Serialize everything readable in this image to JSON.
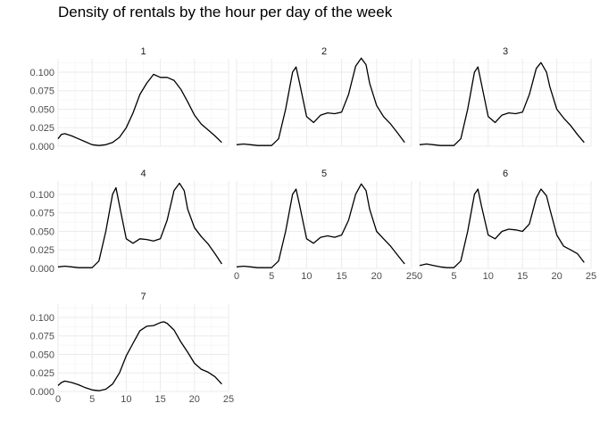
{
  "chart_data": {
    "type": "line",
    "title": "Density of rentals by the hour per day of the week",
    "xlabel": "",
    "ylabel": "",
    "xlim": [
      0,
      25
    ],
    "x_ticks": [
      0,
      5,
      10,
      15,
      20,
      25
    ],
    "x_tick_labels": [
      "0",
      "5",
      "10",
      "15",
      "20",
      "25"
    ],
    "y_ticks": [
      0,
      0.025,
      0.05,
      0.075,
      0.1
    ],
    "y_tick_labels": [
      "0.000",
      "0.025",
      "0.050",
      "0.075",
      "0.100"
    ],
    "ylim": [
      0,
      0.118
    ],
    "grid": true,
    "facets": [
      {
        "label": "1",
        "points": [
          [
            0,
            0.01
          ],
          [
            0.5,
            0.016
          ],
          [
            1,
            0.017
          ],
          [
            2,
            0.014
          ],
          [
            3,
            0.01
          ],
          [
            4,
            0.006
          ],
          [
            5,
            0.002
          ],
          [
            6,
            0.001
          ],
          [
            7,
            0.002
          ],
          [
            8,
            0.005
          ],
          [
            9,
            0.012
          ],
          [
            10,
            0.025
          ],
          [
            11,
            0.045
          ],
          [
            12,
            0.07
          ],
          [
            13,
            0.085
          ],
          [
            14,
            0.097
          ],
          [
            15,
            0.093
          ],
          [
            16,
            0.093
          ],
          [
            17,
            0.089
          ],
          [
            18,
            0.077
          ],
          [
            19,
            0.06
          ],
          [
            20,
            0.042
          ],
          [
            21,
            0.03
          ],
          [
            22,
            0.022
          ],
          [
            23,
            0.014
          ],
          [
            24,
            0.005
          ]
        ]
      },
      {
        "label": "2",
        "points": [
          [
            0,
            0.002
          ],
          [
            1,
            0.003
          ],
          [
            2,
            0.002
          ],
          [
            3,
            0.001
          ],
          [
            4,
            0.001
          ],
          [
            5,
            0.001
          ],
          [
            6,
            0.01
          ],
          [
            7,
            0.05
          ],
          [
            8,
            0.1
          ],
          [
            8.5,
            0.107
          ],
          [
            9,
            0.085
          ],
          [
            10,
            0.04
          ],
          [
            11,
            0.032
          ],
          [
            12,
            0.042
          ],
          [
            13,
            0.045
          ],
          [
            14,
            0.044
          ],
          [
            15,
            0.046
          ],
          [
            16,
            0.07
          ],
          [
            17,
            0.108
          ],
          [
            17.8,
            0.119
          ],
          [
            18.5,
            0.11
          ],
          [
            19,
            0.085
          ],
          [
            20,
            0.055
          ],
          [
            21,
            0.04
          ],
          [
            22,
            0.03
          ],
          [
            23,
            0.018
          ],
          [
            24,
            0.005
          ]
        ]
      },
      {
        "label": "3",
        "points": [
          [
            0,
            0.002
          ],
          [
            1,
            0.003
          ],
          [
            2,
            0.002
          ],
          [
            3,
            0.001
          ],
          [
            4,
            0.001
          ],
          [
            5,
            0.001
          ],
          [
            6,
            0.01
          ],
          [
            7,
            0.05
          ],
          [
            8,
            0.1
          ],
          [
            8.5,
            0.107
          ],
          [
            9,
            0.085
          ],
          [
            10,
            0.04
          ],
          [
            11,
            0.032
          ],
          [
            12,
            0.042
          ],
          [
            13,
            0.045
          ],
          [
            14,
            0.044
          ],
          [
            15,
            0.046
          ],
          [
            16,
            0.07
          ],
          [
            17,
            0.105
          ],
          [
            17.7,
            0.113
          ],
          [
            18.5,
            0.1
          ],
          [
            19,
            0.08
          ],
          [
            20,
            0.05
          ],
          [
            21,
            0.038
          ],
          [
            22,
            0.028
          ],
          [
            23,
            0.016
          ],
          [
            24,
            0.005
          ]
        ]
      },
      {
        "label": "4",
        "points": [
          [
            0,
            0.002
          ],
          [
            1,
            0.003
          ],
          [
            2,
            0.002
          ],
          [
            3,
            0.001
          ],
          [
            4,
            0.001
          ],
          [
            5,
            0.001
          ],
          [
            6,
            0.01
          ],
          [
            7,
            0.05
          ],
          [
            8,
            0.1
          ],
          [
            8.5,
            0.109
          ],
          [
            9,
            0.085
          ],
          [
            10,
            0.04
          ],
          [
            11,
            0.034
          ],
          [
            12,
            0.04
          ],
          [
            13,
            0.039
          ],
          [
            14,
            0.037
          ],
          [
            15,
            0.04
          ],
          [
            16,
            0.065
          ],
          [
            17,
            0.105
          ],
          [
            17.8,
            0.115
          ],
          [
            18.5,
            0.105
          ],
          [
            19,
            0.08
          ],
          [
            20,
            0.055
          ],
          [
            21,
            0.043
          ],
          [
            22,
            0.033
          ],
          [
            23,
            0.02
          ],
          [
            24,
            0.006
          ]
        ]
      },
      {
        "label": "5",
        "points": [
          [
            0,
            0.002
          ],
          [
            1,
            0.003
          ],
          [
            2,
            0.002
          ],
          [
            3,
            0.001
          ],
          [
            4,
            0.001
          ],
          [
            5,
            0.001
          ],
          [
            6,
            0.01
          ],
          [
            7,
            0.05
          ],
          [
            8,
            0.1
          ],
          [
            8.5,
            0.107
          ],
          [
            9,
            0.085
          ],
          [
            10,
            0.04
          ],
          [
            11,
            0.034
          ],
          [
            12,
            0.042
          ],
          [
            13,
            0.044
          ],
          [
            14,
            0.042
          ],
          [
            15,
            0.045
          ],
          [
            16,
            0.065
          ],
          [
            17,
            0.1
          ],
          [
            17.8,
            0.114
          ],
          [
            18.5,
            0.105
          ],
          [
            19,
            0.08
          ],
          [
            20,
            0.05
          ],
          [
            21,
            0.04
          ],
          [
            22,
            0.03
          ],
          [
            23,
            0.018
          ],
          [
            24,
            0.006
          ]
        ]
      },
      {
        "label": "6",
        "points": [
          [
            0,
            0.004
          ],
          [
            1,
            0.006
          ],
          [
            2,
            0.004
          ],
          [
            3,
            0.002
          ],
          [
            4,
            0.001
          ],
          [
            5,
            0.001
          ],
          [
            6,
            0.01
          ],
          [
            7,
            0.05
          ],
          [
            8,
            0.1
          ],
          [
            8.5,
            0.107
          ],
          [
            9,
            0.085
          ],
          [
            10,
            0.045
          ],
          [
            11,
            0.04
          ],
          [
            12,
            0.05
          ],
          [
            13,
            0.053
          ],
          [
            14,
            0.052
          ],
          [
            15,
            0.05
          ],
          [
            16,
            0.06
          ],
          [
            17,
            0.095
          ],
          [
            17.7,
            0.107
          ],
          [
            18.5,
            0.098
          ],
          [
            19,
            0.08
          ],
          [
            20,
            0.045
          ],
          [
            21,
            0.03
          ],
          [
            22,
            0.025
          ],
          [
            23,
            0.02
          ],
          [
            24,
            0.008
          ]
        ]
      },
      {
        "label": "7",
        "points": [
          [
            0,
            0.008
          ],
          [
            0.5,
            0.012
          ],
          [
            1,
            0.014
          ],
          [
            2,
            0.012
          ],
          [
            3,
            0.009
          ],
          [
            4,
            0.005
          ],
          [
            5,
            0.002
          ],
          [
            6,
            0.001
          ],
          [
            7,
            0.003
          ],
          [
            8,
            0.01
          ],
          [
            9,
            0.025
          ],
          [
            10,
            0.048
          ],
          [
            11,
            0.065
          ],
          [
            12,
            0.082
          ],
          [
            13,
            0.088
          ],
          [
            14,
            0.089
          ],
          [
            15,
            0.093
          ],
          [
            15.5,
            0.094
          ],
          [
            16,
            0.092
          ],
          [
            17,
            0.083
          ],
          [
            18,
            0.067
          ],
          [
            19,
            0.053
          ],
          [
            20,
            0.038
          ],
          [
            21,
            0.03
          ],
          [
            22,
            0.026
          ],
          [
            23,
            0.02
          ],
          [
            24,
            0.01
          ]
        ]
      }
    ]
  }
}
